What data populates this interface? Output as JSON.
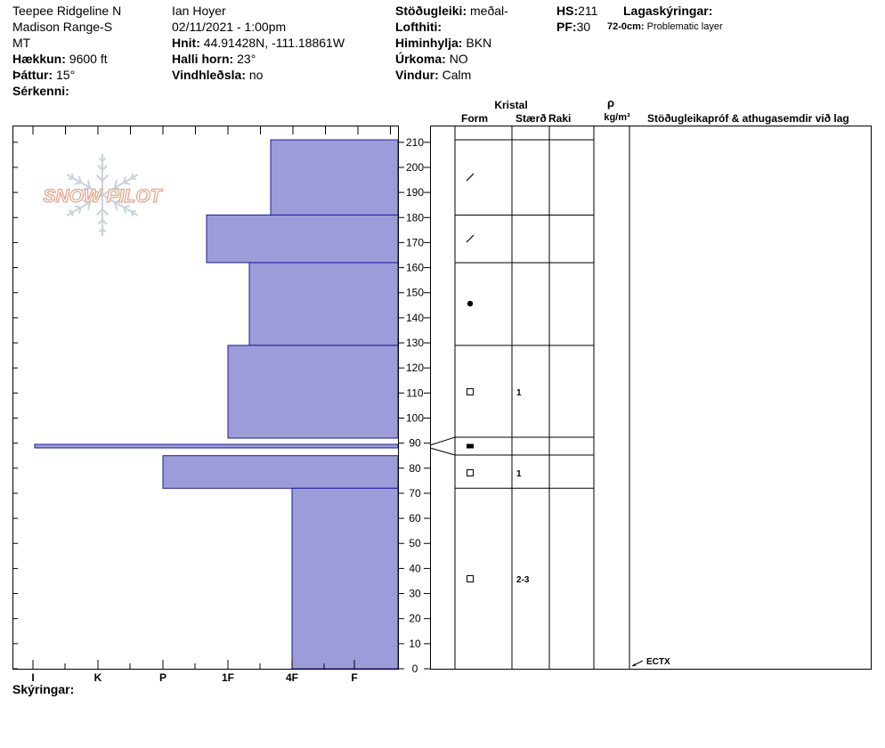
{
  "header": {
    "location": "Teepee Ridgeline N",
    "range": "Madison Range-S",
    "state": "MT",
    "elevation_label": "Hækkun:",
    "elevation_value": "9600 ft",
    "aspect_label": "Þáttur:",
    "aspect_value": "15°",
    "features_label": "Sérkenni:",
    "observer": "Ian Hoyer",
    "datetime": "02/11/2021 - 1:00pm",
    "coords_label": "Hnit:",
    "coords_value": "44.91428N, -111.18861W",
    "slope_label": "Halli horn:",
    "slope_value": "23°",
    "wind_loading_label": "Vindhleðsla:",
    "wind_loading_value": "no",
    "stability_label": "Stöðugleiki:",
    "stability_value": "meðal-",
    "air_temp_label": "Lofthiti:",
    "sky_label": "Himinhylja:",
    "sky_value": "BKN",
    "precip_label": "Úrkoma:",
    "precip_value": "NO",
    "wind_label": "Vindur:",
    "wind_value": "Calm",
    "hs_label": "HS:",
    "hs_value": "211",
    "pf_label": "PF:",
    "pf_value": "30",
    "layer_notes_label": "Lagaskýringar:",
    "layer_note_depth": "72-0cm:",
    "layer_note_text": "Problematic layer"
  },
  "logo_text": "SNOW PILOT",
  "columns": {
    "crystal": "Kristal",
    "form": "Form",
    "size": "Stærð",
    "moisture": "Raki",
    "rho": "ρ",
    "density_unit": "kg/m³",
    "tests": "Stöðugleikapróf & athugasemdir við lag"
  },
  "footer": {
    "legend_label": "Skýringar:"
  },
  "chart_data": {
    "type": "bar",
    "title": "",
    "xlabel": "",
    "ylabel": "",
    "ylim": [
      0,
      211
    ],
    "yticks": [
      0,
      10,
      20,
      30,
      40,
      50,
      60,
      70,
      80,
      90,
      100,
      110,
      120,
      130,
      140,
      150,
      160,
      170,
      180,
      190,
      200,
      210
    ],
    "hardness_scale": [
      "I",
      "K",
      "P",
      "1F",
      "4F",
      "F"
    ],
    "layers": [
      {
        "top": 211,
        "bottom": 181,
        "hardness": "4F+",
        "form": "decomposing",
        "size": "",
        "moisture": ""
      },
      {
        "top": 181,
        "bottom": 162,
        "hardness": "1F+",
        "form": "decomposing",
        "size": "",
        "moisture": ""
      },
      {
        "top": 162,
        "bottom": 129,
        "hardness": "1F-",
        "form": "rounded",
        "size": "",
        "moisture": ""
      },
      {
        "top": 129,
        "bottom": 92,
        "hardness": "1F",
        "form": "faceted",
        "size": "1",
        "moisture": ""
      },
      {
        "top": 92,
        "bottom": 85,
        "hardness": "I+",
        "form": "crust",
        "size": "",
        "moisture": ""
      },
      {
        "top": 85,
        "bottom": 72,
        "hardness": "P",
        "form": "faceted",
        "size": "1",
        "moisture": ""
      },
      {
        "top": 72,
        "bottom": 0,
        "hardness": "4F",
        "form": "faceted",
        "size": "2-3",
        "moisture": ""
      }
    ],
    "tests": [
      {
        "depth": 0,
        "label": "ECTX"
      }
    ]
  }
}
